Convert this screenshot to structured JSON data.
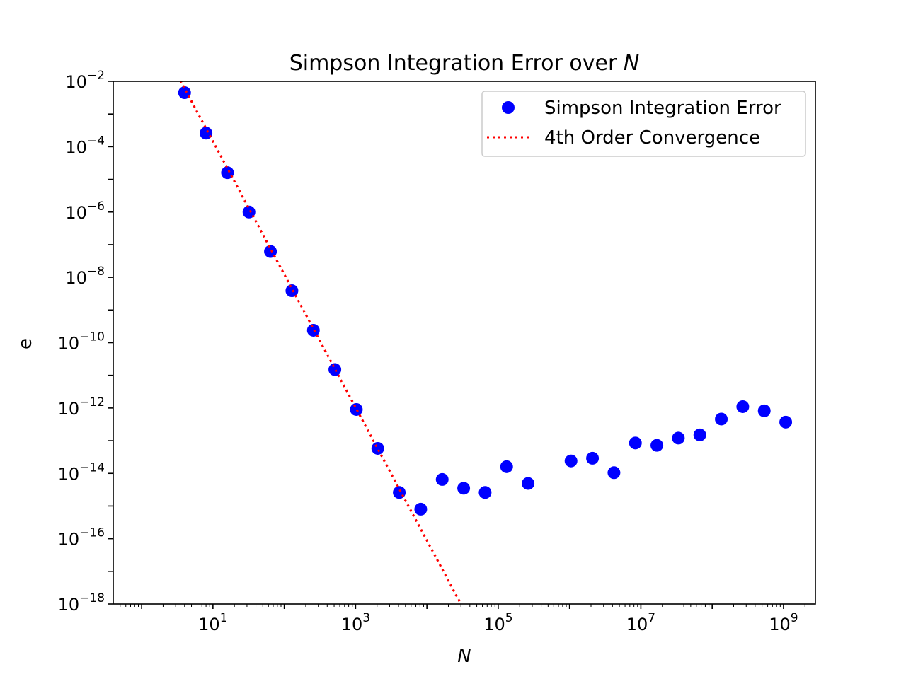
{
  "chart_data": {
    "type": "scatter",
    "title": "Simpson Integration Error over ",
    "title_italic": "N",
    "xlabel": "N",
    "ylabel": "e",
    "x_scale": "log",
    "y_scale": "log",
    "xlim": [
      0.4,
      2800000000
    ],
    "ylim": [
      1e-18,
      0.01
    ],
    "x_ticks": [
      {
        "value": 10,
        "base": "10",
        "exp": "1"
      },
      {
        "value": 1000,
        "base": "10",
        "exp": "3"
      },
      {
        "value": 100000,
        "base": "10",
        "exp": "5"
      },
      {
        "value": 10000000,
        "base": "10",
        "exp": "7"
      },
      {
        "value": 1000000000,
        "base": "10",
        "exp": "9"
      }
    ],
    "y_ticks": [
      {
        "value": 0.01,
        "base": "10",
        "exp": "−2"
      },
      {
        "value": 0.0001,
        "base": "10",
        "exp": "−4"
      },
      {
        "value": 1e-06,
        "base": "10",
        "exp": "−6"
      },
      {
        "value": 1e-08,
        "base": "10",
        "exp": "−8"
      },
      {
        "value": 1e-10,
        "base": "10",
        "exp": "−10"
      },
      {
        "value": 1e-12,
        "base": "10",
        "exp": "−12"
      },
      {
        "value": 1e-14,
        "base": "10",
        "exp": "−14"
      },
      {
        "value": 1e-16,
        "base": "10",
        "exp": "−16"
      },
      {
        "value": 1e-18,
        "base": "10",
        "exp": "−18"
      }
    ],
    "grid": false,
    "legend_position": "top-right",
    "series": [
      {
        "name": "Simpson Integration Error",
        "kind": "markers",
        "color": "#0000ff",
        "points": [
          [
            4,
            0.0045
          ],
          [
            8,
            0.00026
          ],
          [
            16,
            1.6e-05
          ],
          [
            32,
            1e-06
          ],
          [
            64,
            6.2e-08
          ],
          [
            128,
            3.9e-09
          ],
          [
            256,
            2.4e-10
          ],
          [
            512,
            1.5e-11
          ],
          [
            1024,
            9e-13
          ],
          [
            2048,
            5.8e-14
          ],
          [
            4096,
            2.6e-15
          ],
          [
            8192,
            8e-16
          ],
          [
            16384,
            6.5e-15
          ],
          [
            32768,
            3.5e-15
          ],
          [
            65536,
            2.6e-15
          ],
          [
            131072,
            1.6e-14
          ],
          [
            262144,
            4.9e-15
          ],
          [
            1048576,
            2.4e-14
          ],
          [
            2097152,
            2.9e-14
          ],
          [
            4194304,
            1.05e-14
          ],
          [
            8388608,
            8.5e-14
          ],
          [
            16777216,
            7.2e-14
          ],
          [
            33554432,
            1.2e-13
          ],
          [
            67108864,
            1.5e-13
          ],
          [
            134217728,
            4.6e-13
          ],
          [
            268435456,
            1.1e-12
          ],
          [
            536870912,
            8.2e-13
          ],
          [
            1073741824,
            3.7e-13
          ]
        ]
      },
      {
        "name": "4th Order Convergence",
        "kind": "dotted-line",
        "color": "#ff0000",
        "points": [
          [
            3.5,
            0.0105
          ],
          [
            30000,
            1e-18
          ]
        ]
      }
    ]
  }
}
